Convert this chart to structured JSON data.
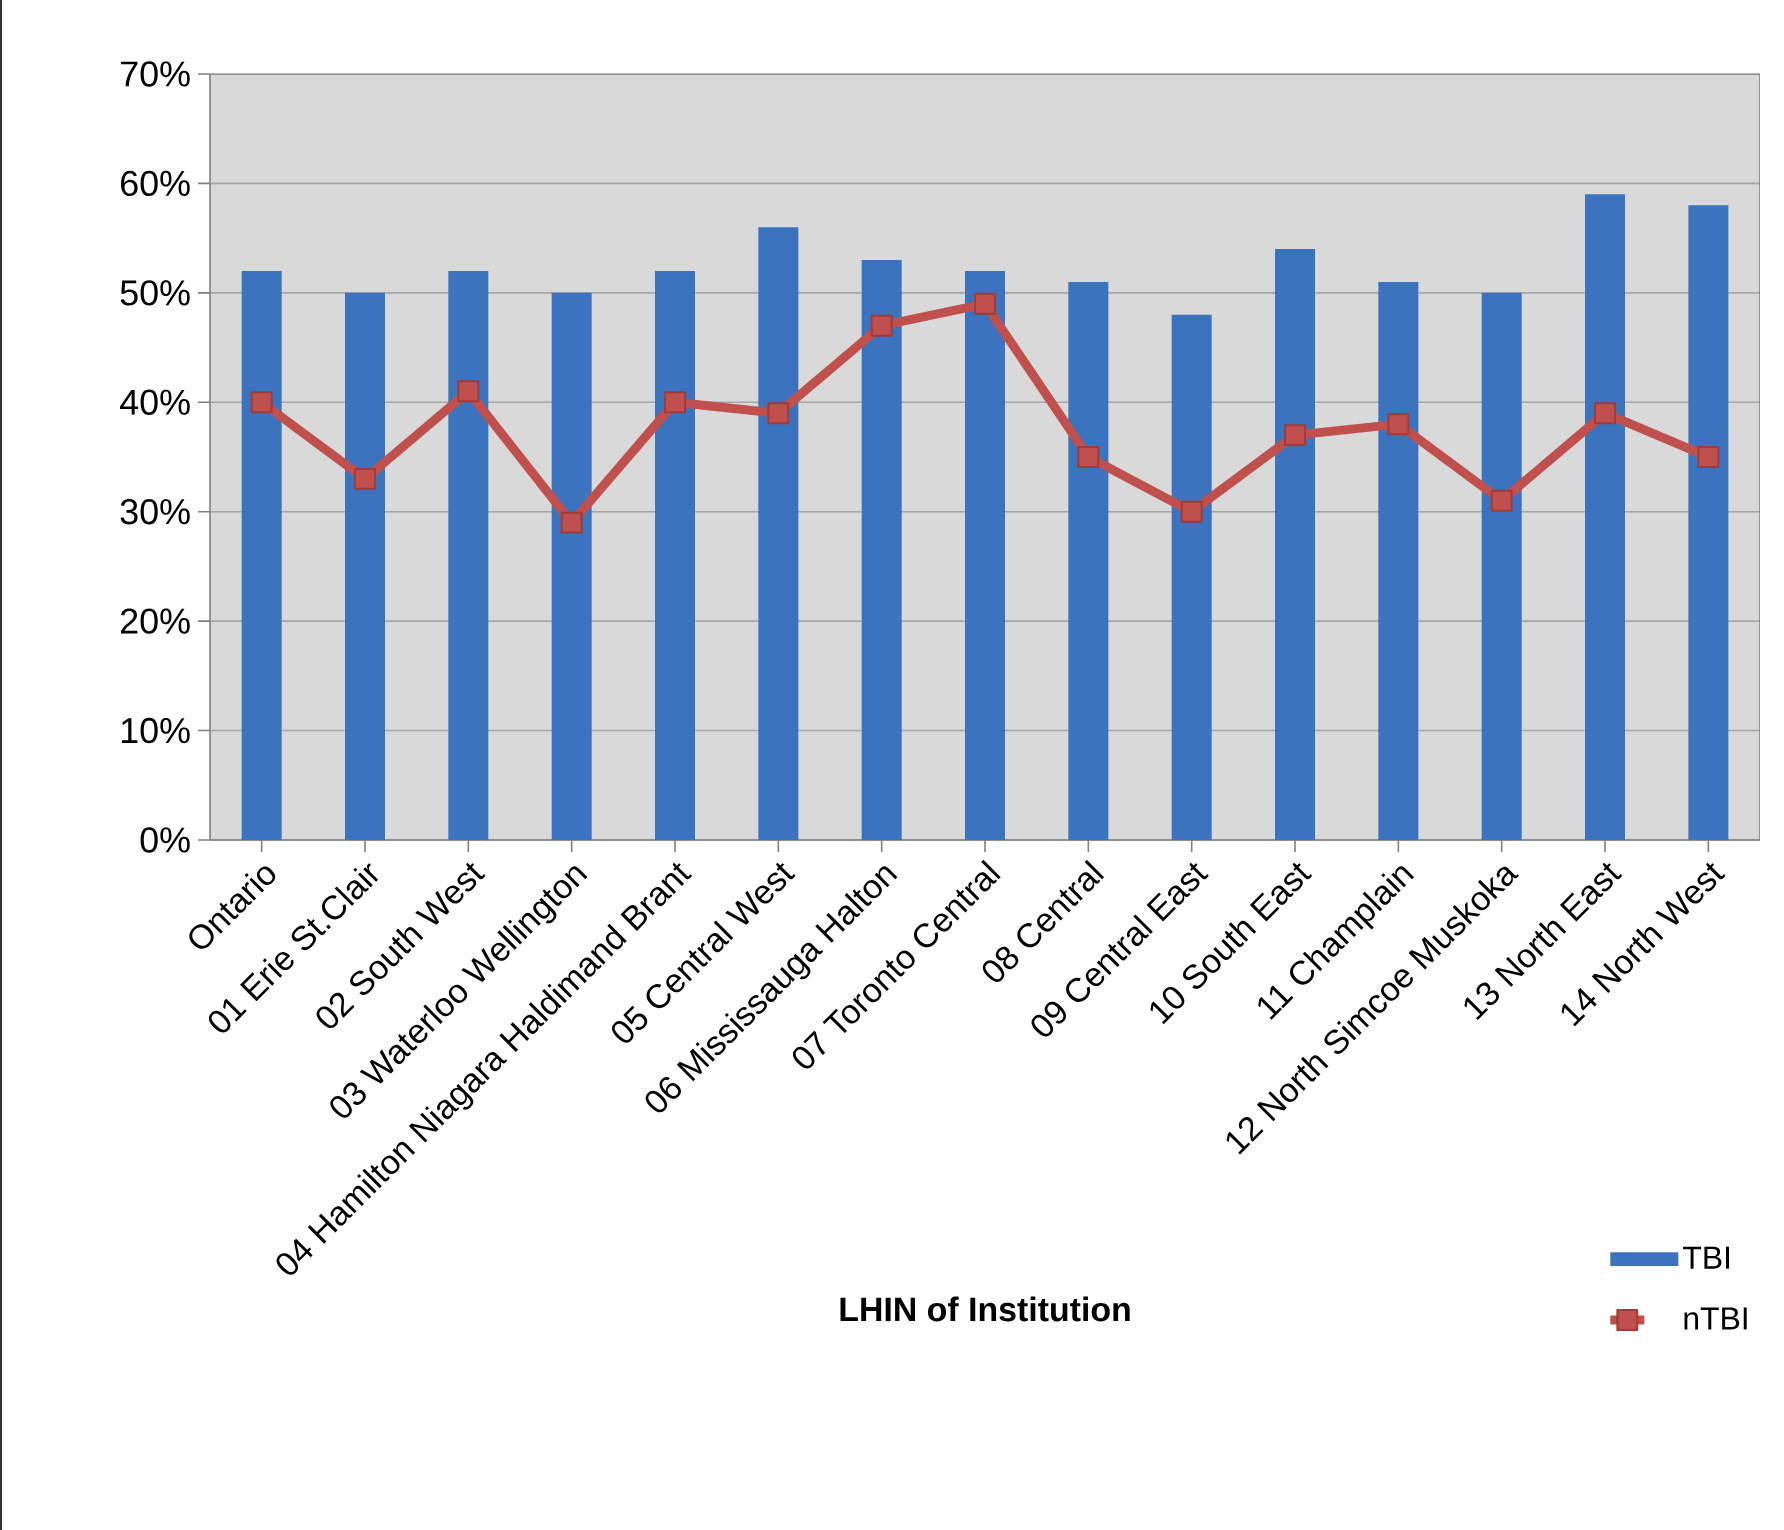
{
  "chart_data": {
    "type": "bar",
    "xlabel": "LHIN of Institution",
    "categories": [
      "Ontario",
      "01 Erie St.Clair",
      "02 South West",
      "03 Waterloo Wellington",
      "04 Hamilton Niagara Haldimand Brant",
      "05 Central West",
      "06 Mississauga Halton",
      "07 Toronto Central",
      "08 Central",
      "09 Central East",
      "10 South East",
      "11 Champlain",
      "12 North Simcoe Muskoka",
      "13 North East",
      "14 North West"
    ],
    "series": [
      {
        "name": "TBI",
        "color": "#3b73bf",
        "values": [
          52,
          50,
          52,
          50,
          52,
          56,
          53,
          52,
          51,
          48,
          54,
          51,
          50,
          59,
          58
        ]
      },
      {
        "name": "nTBI",
        "type": "line",
        "color": "#c0504d",
        "marker": "square",
        "values": [
          40,
          33,
          41,
          29,
          40,
          39,
          47,
          49,
          35,
          30,
          37,
          38,
          31,
          39,
          35
        ]
      }
    ],
    "ylim": [
      0,
      70
    ],
    "yticks": [
      {
        "value": 0,
        "label": "0%"
      },
      {
        "value": 10,
        "label": "10%"
      },
      {
        "value": 20,
        "label": "20%"
      },
      {
        "value": 30,
        "label": "30%"
      },
      {
        "value": 40,
        "label": "40%"
      },
      {
        "value": 50,
        "label": "50%"
      },
      {
        "value": 60,
        "label": "60%"
      },
      {
        "value": 70,
        "label": "70%"
      }
    ],
    "grid": "y",
    "legend": "bottom right"
  }
}
